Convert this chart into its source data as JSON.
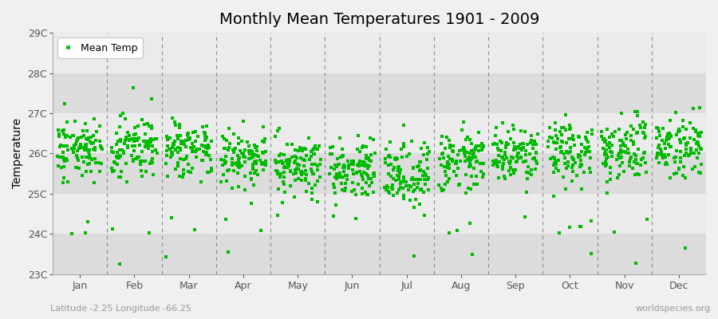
{
  "title": "Monthly Mean Temperatures 1901 - 2009",
  "ylabel": "Temperature",
  "xlabel_bottom_left": "Latitude -2.25 Longitude -66.25",
  "xlabel_bottom_right": "worldspecies.org",
  "legend_label": "Mean Temp",
  "marker_color": "#00bb00",
  "marker_size": 3,
  "ylim": [
    23,
    29
  ],
  "yticks": [
    23,
    24,
    25,
    26,
    27,
    28,
    29
  ],
  "ytick_labels": [
    "23C",
    "24C",
    "25C",
    "26C",
    "27C",
    "28C",
    "29C"
  ],
  "months": [
    "Jan",
    "Feb",
    "Mar",
    "Apr",
    "May",
    "Jun",
    "Jul",
    "Aug",
    "Sep",
    "Oct",
    "Nov",
    "Dec"
  ],
  "num_years": 109,
  "year_start": 1901,
  "year_end": 2009,
  "background_color": "#f0f0f0",
  "band_light": "#ebebeb",
  "band_dark": "#dcdcdc",
  "title_fontsize": 14,
  "axis_label_fontsize": 10,
  "tick_label_fontsize": 9,
  "legend_fontsize": 9,
  "month_means": [
    26.1,
    26.15,
    26.1,
    25.95,
    25.65,
    25.55,
    25.5,
    25.75,
    25.95,
    26.05,
    26.15,
    26.2
  ],
  "month_stds": [
    0.35,
    0.38,
    0.38,
    0.35,
    0.38,
    0.4,
    0.42,
    0.38,
    0.35,
    0.38,
    0.38,
    0.38
  ]
}
